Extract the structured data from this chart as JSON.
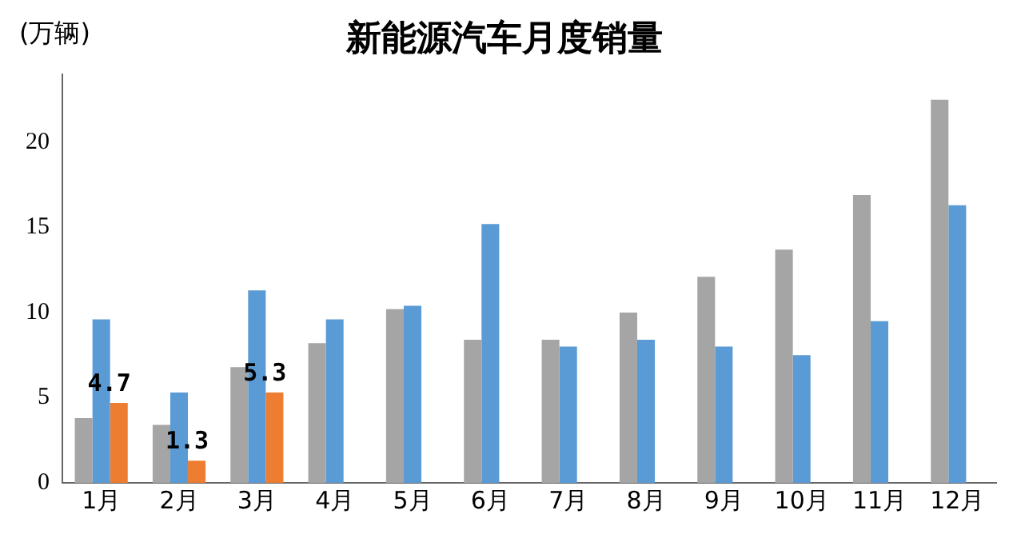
{
  "chart_data": {
    "type": "bar",
    "title": "新能源汽车月度销量",
    "ylabel": "(万辆)",
    "categories": [
      "1月",
      "2月",
      "3月",
      "4月",
      "5月",
      "6月",
      "7月",
      "8月",
      "9月",
      "10月",
      "11月",
      "12月"
    ],
    "series": [
      {
        "color": "#a5a5a5",
        "values": [
          3.8,
          3.4,
          6.8,
          8.2,
          10.2,
          8.4,
          8.4,
          10.0,
          12.1,
          13.7,
          16.9,
          22.5
        ]
      },
      {
        "color": "#5b9bd5",
        "values": [
          9.6,
          5.3,
          11.3,
          9.6,
          10.4,
          15.2,
          8.0,
          8.4,
          8.0,
          7.5,
          9.5,
          16.3
        ]
      },
      {
        "color": "#ed7d31",
        "values": [
          4.7,
          1.3,
          5.3,
          null,
          null,
          null,
          null,
          null,
          null,
          null,
          null,
          null
        ],
        "value_labels": [
          "4.7",
          "1.3",
          "5.3",
          null,
          null,
          null,
          null,
          null,
          null,
          null,
          null,
          null
        ]
      }
    ],
    "ylim": [
      0,
      24
    ],
    "yticks": [
      0,
      5,
      10,
      15,
      20
    ],
    "grid": false,
    "legend": false
  }
}
